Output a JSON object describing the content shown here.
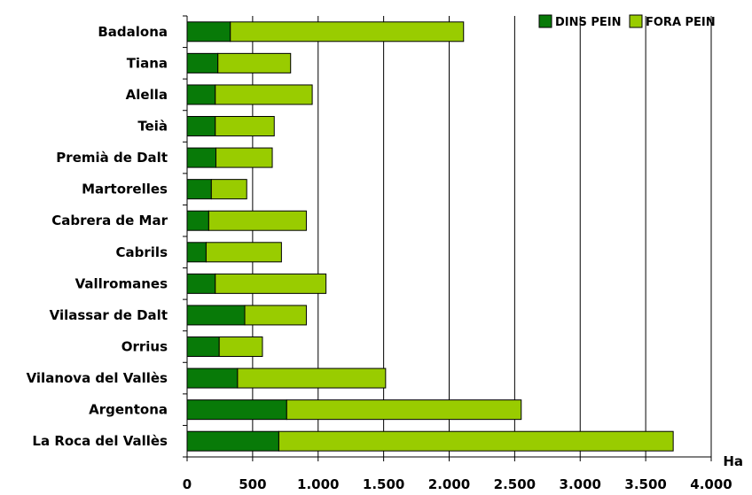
{
  "chart_data": {
    "type": "bar",
    "orientation": "horizontal",
    "stacked": true,
    "categories": [
      "Badalona",
      "Tiana",
      "Alella",
      "Teià",
      "Premià de Dalt",
      "Martorelles",
      "Cabrera de Mar",
      "Cabrils",
      "Vallromanes",
      "Vilassar de Dalt",
      "Orrius",
      "Vilanova del Vallès",
      "Argentona",
      "La Roca del Vallès"
    ],
    "series": [
      {
        "name": "DINS PEIN",
        "color": "#087a08",
        "values": [
          330,
          235,
          215,
          215,
          220,
          185,
          165,
          145,
          215,
          440,
          245,
          385,
          760,
          700
        ]
      },
      {
        "name": "FORA PEIN",
        "color": "#99cc00",
        "values": [
          1780,
          555,
          740,
          450,
          430,
          270,
          745,
          575,
          845,
          470,
          330,
          1130,
          1790,
          3010
        ]
      }
    ],
    "xlabel": "Ha",
    "xlim": [
      0,
      4000
    ],
    "xticks": [
      0,
      500,
      1000,
      1500,
      2000,
      2500,
      3000,
      3500,
      4000
    ],
    "xtick_labels": [
      "0",
      "500",
      "1.000",
      "1.500",
      "2.000",
      "2.500",
      "3.000",
      "3.500",
      "4.000"
    ],
    "grid": "vertical",
    "legend_position": "top-right"
  }
}
